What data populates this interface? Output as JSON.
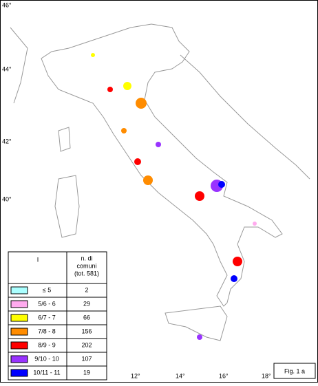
{
  "map": {
    "lat_labels": [
      "46°",
      "44°",
      "42°",
      "40°"
    ],
    "lon_labels": [
      "12°",
      "14°",
      "16°",
      "18°"
    ]
  },
  "legend": {
    "header_left": "I",
    "header_right": [
      "n. di",
      "comuni",
      "(tot. 581)"
    ],
    "rows": [
      {
        "color": "#aaffff",
        "label": "≤ 5",
        "count": 2
      },
      {
        "color": "#ffaaee",
        "label": "5/6 - 6",
        "count": 29
      },
      {
        "color": "#ffff00",
        "label": "6/7 - 7",
        "count": 66
      },
      {
        "color": "#ff8c00",
        "label": "7/8 - 8",
        "count": 156
      },
      {
        "color": "#ff0000",
        "label": "8/9 - 9",
        "count": 202
      },
      {
        "color": "#9933ff",
        "label": "9/10 - 10",
        "count": 107
      },
      {
        "color": "#0000ff",
        "label": "10/11 - 11",
        "count": 19
      }
    ]
  },
  "figure_label": "Fig. 1 a"
}
